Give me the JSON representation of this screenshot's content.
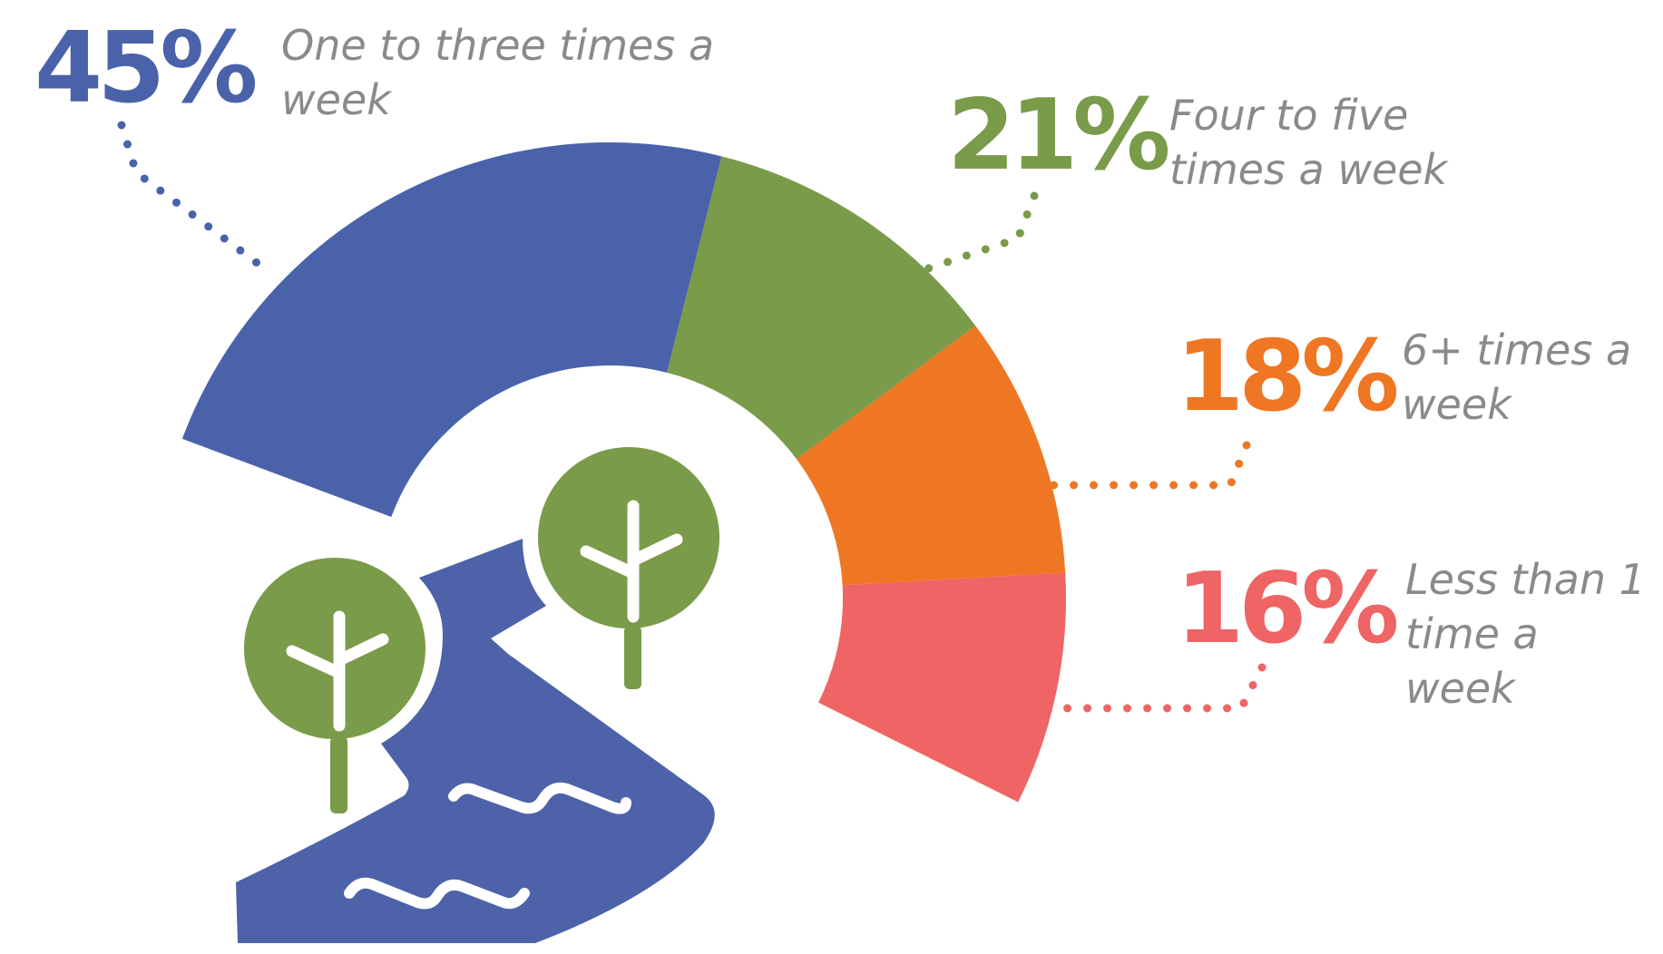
{
  "chart_data": {
    "type": "donut",
    "categories": [
      "One to three times a week",
      "Four to five times a week",
      "6+ times a week",
      "Less than 1 time a week"
    ],
    "values": [
      45,
      21,
      18,
      16
    ],
    "value_labels": [
      "45%",
      "21%",
      "18%",
      "16%"
    ],
    "colors": [
      "#4a62aa",
      "#7a9b4a",
      "#ef7622",
      "#ef6464"
    ]
  }
}
